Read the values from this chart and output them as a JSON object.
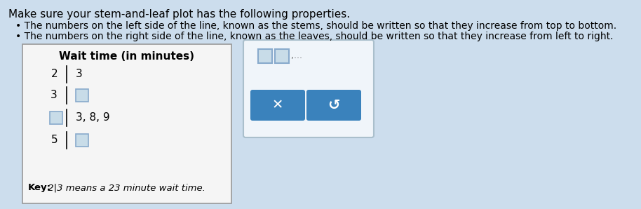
{
  "title_text": "Make sure your stem-and-leaf plot has the following properties.",
  "bullet1": "The numbers on the left side of the line, known as the stems, should be written so that they increase from top to bottom.",
  "bullet2": "The numbers on the right side of the line, known as the leaves, should be written so that they increase from left to right.",
  "plot_title": "Wait time (in minutes)",
  "stems": [
    "2",
    "3",
    "□",
    "5"
  ],
  "leaves": [
    "3",
    "□",
    "3, 8, 9",
    "□"
  ],
  "key_text": "Key: 2|3 means a 23 minute wait time.",
  "bg_color": "#ccdded",
  "plot_box_facecolor": "#f5f5f5",
  "plot_box_edgecolor": "#999999",
  "answer_box_facecolor": "#f0f5fa",
  "answer_box_edgecolor": "#aabfcc",
  "input_box_facecolor": "#c8dce8",
  "input_box_edgecolor": "#88aacc",
  "btn_color": "#3a82bc",
  "btn_text_color": "#ffffff",
  "text_color": "#000000",
  "key_bold": "Key:",
  "key_rest": " 2|3 means a 23 minute wait time.",
  "font_size_title": 11,
  "font_size_bullet": 10,
  "font_size_plot_title": 11,
  "font_size_stem": 11,
  "font_size_key": 9.5
}
